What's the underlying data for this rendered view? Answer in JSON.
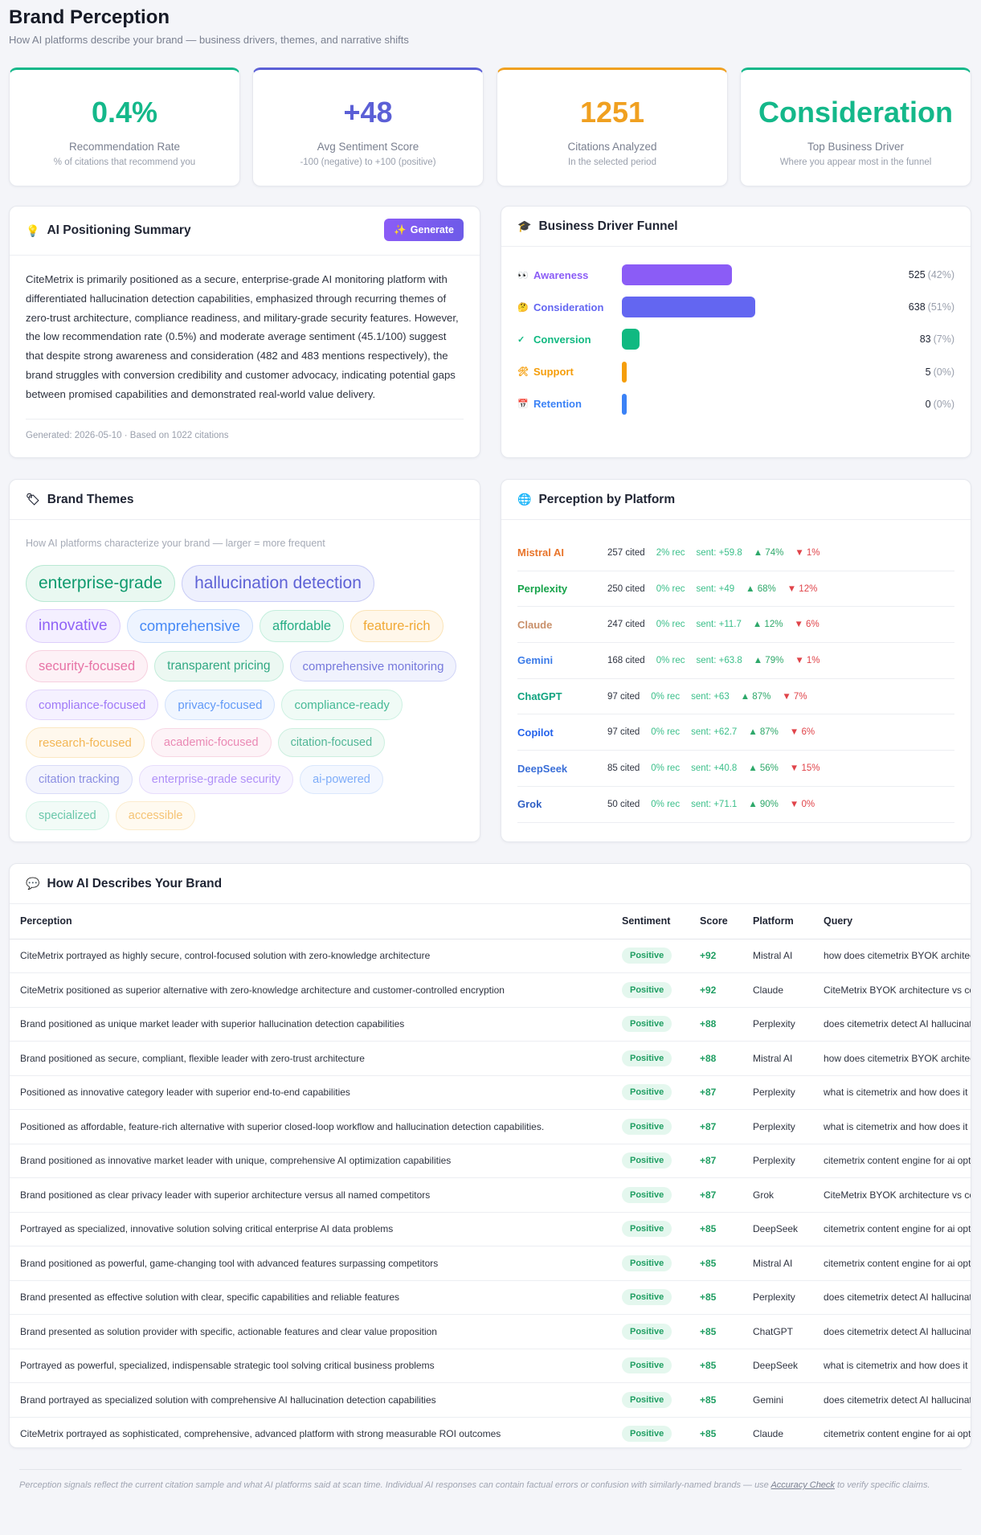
{
  "header": {
    "title": "Brand Perception",
    "subtitle": "How AI platforms describe your brand — business drivers, themes, and narrative shifts"
  },
  "kpis": [
    {
      "value": "0.4%",
      "label": "Recommendation Rate",
      "note": "% of citations that recommend you",
      "color": "#14b88a"
    },
    {
      "value": "+48",
      "label": "Avg Sentiment Score",
      "note": "-100 (negative) to +100 (positive)",
      "color": "#5b5fd6"
    },
    {
      "value": "1251",
      "label": "Citations Analyzed",
      "note": "In the selected period",
      "color": "#f0a020"
    },
    {
      "value": "Consideration",
      "label": "Top Business Driver",
      "note": "Where you appear most in the funnel",
      "color": "#14b88a"
    }
  ],
  "summary": {
    "title": "AI Positioning Summary",
    "button": "Generate",
    "text": "CiteMetrix is primarily positioned as a secure, enterprise-grade AI monitoring platform with differentiated hallucination detection capabilities, emphasized through recurring themes of zero-trust architecture, compliance readiness, and military-grade security features. However, the low recommendation rate (0.5%) and moderate average sentiment (45.1/100) suggest that despite strong awareness and consideration (482 and 483 mentions respectively), the brand struggles with conversion credibility and customer advocacy, indicating potential gaps between promised capabilities and demonstrated real-world value delivery.",
    "footer": "Generated: 2026-05-10 · Based on 1022 citations"
  },
  "funnel": {
    "title": "Business Driver Funnel",
    "stages": [
      {
        "icon": "👀",
        "name": "Awareness",
        "count": 525,
        "share": "(42%)",
        "color": "#8b5cf6"
      },
      {
        "icon": "🤔",
        "name": "Consideration",
        "count": 638,
        "share": "(51%)",
        "color": "#6366f1"
      },
      {
        "icon": "✓",
        "name": "Conversion",
        "count": 83,
        "share": "(7%)",
        "color": "#10b981"
      },
      {
        "icon": "🛠",
        "name": "Support",
        "count": 5,
        "share": "(0%)",
        "color": "#f59e0b"
      },
      {
        "icon": "📅",
        "name": "Retention",
        "count": 0,
        "share": "(0%)",
        "color": "#3b82f6"
      }
    ]
  },
  "themes": {
    "title": "Brand Themes",
    "hint": "How AI platforms characterize your brand — larger = more frequent",
    "tags": [
      "enterprise-grade",
      "hallucination detection",
      "innovative",
      "comprehensive",
      "affordable",
      "feature-rich",
      "security-focused",
      "transparent pricing",
      "comprehensive monitoring",
      "compliance-focused",
      "privacy-focused",
      "compliance-ready",
      "research-focused",
      "academic-focused",
      "citation-focused",
      "citation tracking",
      "enterprise-grade security",
      "ai-powered",
      "specialized",
      "accessible"
    ]
  },
  "platforms": {
    "title": "Perception by Platform",
    "rows": [
      {
        "name": "Mistral AI",
        "color": "#e8742a",
        "cited": "257 cited",
        "rec": "2% rec",
        "sent": "sent: +59.8",
        "up": "▲ 74%",
        "down": "▼ 1%"
      },
      {
        "name": "Perplexity",
        "color": "#16a34a",
        "cited": "250 cited",
        "rec": "0% rec",
        "sent": "sent: +49",
        "up": "▲ 68%",
        "down": "▼ 12%"
      },
      {
        "name": "Claude",
        "color": "#c9906a",
        "cited": "247 cited",
        "rec": "0% rec",
        "sent": "sent: +11.7",
        "up": "▲ 12%",
        "down": "▼ 6%"
      },
      {
        "name": "Gemini",
        "color": "#3b7be8",
        "cited": "168 cited",
        "rec": "0% rec",
        "sent": "sent: +63.8",
        "up": "▲ 79%",
        "down": "▼ 1%"
      },
      {
        "name": "ChatGPT",
        "color": "#10a37f",
        "cited": "97 cited",
        "rec": "0% rec",
        "sent": "sent: +63",
        "up": "▲ 87%",
        "down": "▼ 7%"
      },
      {
        "name": "Copilot",
        "color": "#2563eb",
        "cited": "97 cited",
        "rec": "0% rec",
        "sent": "sent: +62.7",
        "up": "▲ 87%",
        "down": "▼ 6%"
      },
      {
        "name": "DeepSeek",
        "color": "#3b6fd8",
        "cited": "85 cited",
        "rec": "0% rec",
        "sent": "sent: +40.8",
        "up": "▲ 56%",
        "down": "▼ 15%"
      },
      {
        "name": "Grok",
        "color": "#2f5fc4",
        "cited": "50 cited",
        "rec": "0% rec",
        "sent": "sent: +71.1",
        "up": "▲ 90%",
        "down": "▼ 0%"
      }
    ]
  },
  "table": {
    "title": "How AI Describes Your Brand",
    "columns": [
      "Perception",
      "Sentiment",
      "Score",
      "Platform",
      "Query"
    ],
    "rows": [
      [
        "CiteMetrix portrayed as highly secure, control-focused solution with zero-knowledge architecture",
        "Positive",
        "+92",
        "Mistral AI",
        "how does citemetrix BYOK architec..."
      ],
      [
        "CiteMetrix positioned as superior alternative with zero-knowledge architecture and customer-controlled encryption",
        "Positive",
        "+92",
        "Claude",
        "CiteMetrix BYOK architecture vs co..."
      ],
      [
        "Brand positioned as unique market leader with superior hallucination detection capabilities",
        "Positive",
        "+88",
        "Perplexity",
        "does citemetrix detect AI hallucinat..."
      ],
      [
        "Brand positioned as secure, compliant, flexible leader with zero-trust architecture",
        "Positive",
        "+88",
        "Mistral AI",
        "how does citemetrix BYOK architec..."
      ],
      [
        "Positioned as innovative category leader with superior end-to-end capabilities",
        "Positive",
        "+87",
        "Perplexity",
        "what is citemetrix and how does it ..."
      ],
      [
        "Positioned as affordable, feature-rich alternative with superior closed-loop workflow and hallucination detection capabilities.",
        "Positive",
        "+87",
        "Perplexity",
        "what is citemetrix and how does it ..."
      ],
      [
        "Brand positioned as innovative market leader with unique, comprehensive AI optimization capabilities",
        "Positive",
        "+87",
        "Perplexity",
        "citemetrix content engine for ai opt..."
      ],
      [
        "Brand positioned as clear privacy leader with superior architecture versus all named competitors",
        "Positive",
        "+87",
        "Grok",
        "CiteMetrix BYOK architecture vs co..."
      ],
      [
        "Portrayed as specialized, innovative solution solving critical enterprise AI data problems",
        "Positive",
        "+85",
        "DeepSeek",
        "citemetrix content engine for ai opt..."
      ],
      [
        "Brand positioned as powerful, game-changing tool with advanced features surpassing competitors",
        "Positive",
        "+85",
        "Mistral AI",
        "citemetrix content engine for ai opt..."
      ],
      [
        "Brand presented as effective solution with clear, specific capabilities and reliable features",
        "Positive",
        "+85",
        "Perplexity",
        "does citemetrix detect AI hallucinat..."
      ],
      [
        "Brand presented as solution provider with specific, actionable features and clear value proposition",
        "Positive",
        "+85",
        "ChatGPT",
        "does citemetrix detect AI hallucinat..."
      ],
      [
        "Portrayed as powerful, specialized, indispensable strategic tool solving critical business problems",
        "Positive",
        "+85",
        "DeepSeek",
        "what is citemetrix and how does it ..."
      ],
      [
        "Brand portrayed as specialized solution with comprehensive AI hallucination detection capabilities",
        "Positive",
        "+85",
        "Gemini",
        "does citemetrix detect AI hallucinat..."
      ],
      [
        "CiteMetrix portrayed as sophisticated, comprehensive, advanced platform with strong measurable ROI outcomes",
        "Positive",
        "+85",
        "Claude",
        "citemetrix content engine for ai opt..."
      ]
    ]
  },
  "note": {
    "before": "Perception signals reflect the current citation sample and what AI platforms said at scan time. Individual AI responses can contain factual errors or confusion with similarly-named brands — use ",
    "link": "Accuracy Check",
    "after": " to verify specific claims."
  }
}
